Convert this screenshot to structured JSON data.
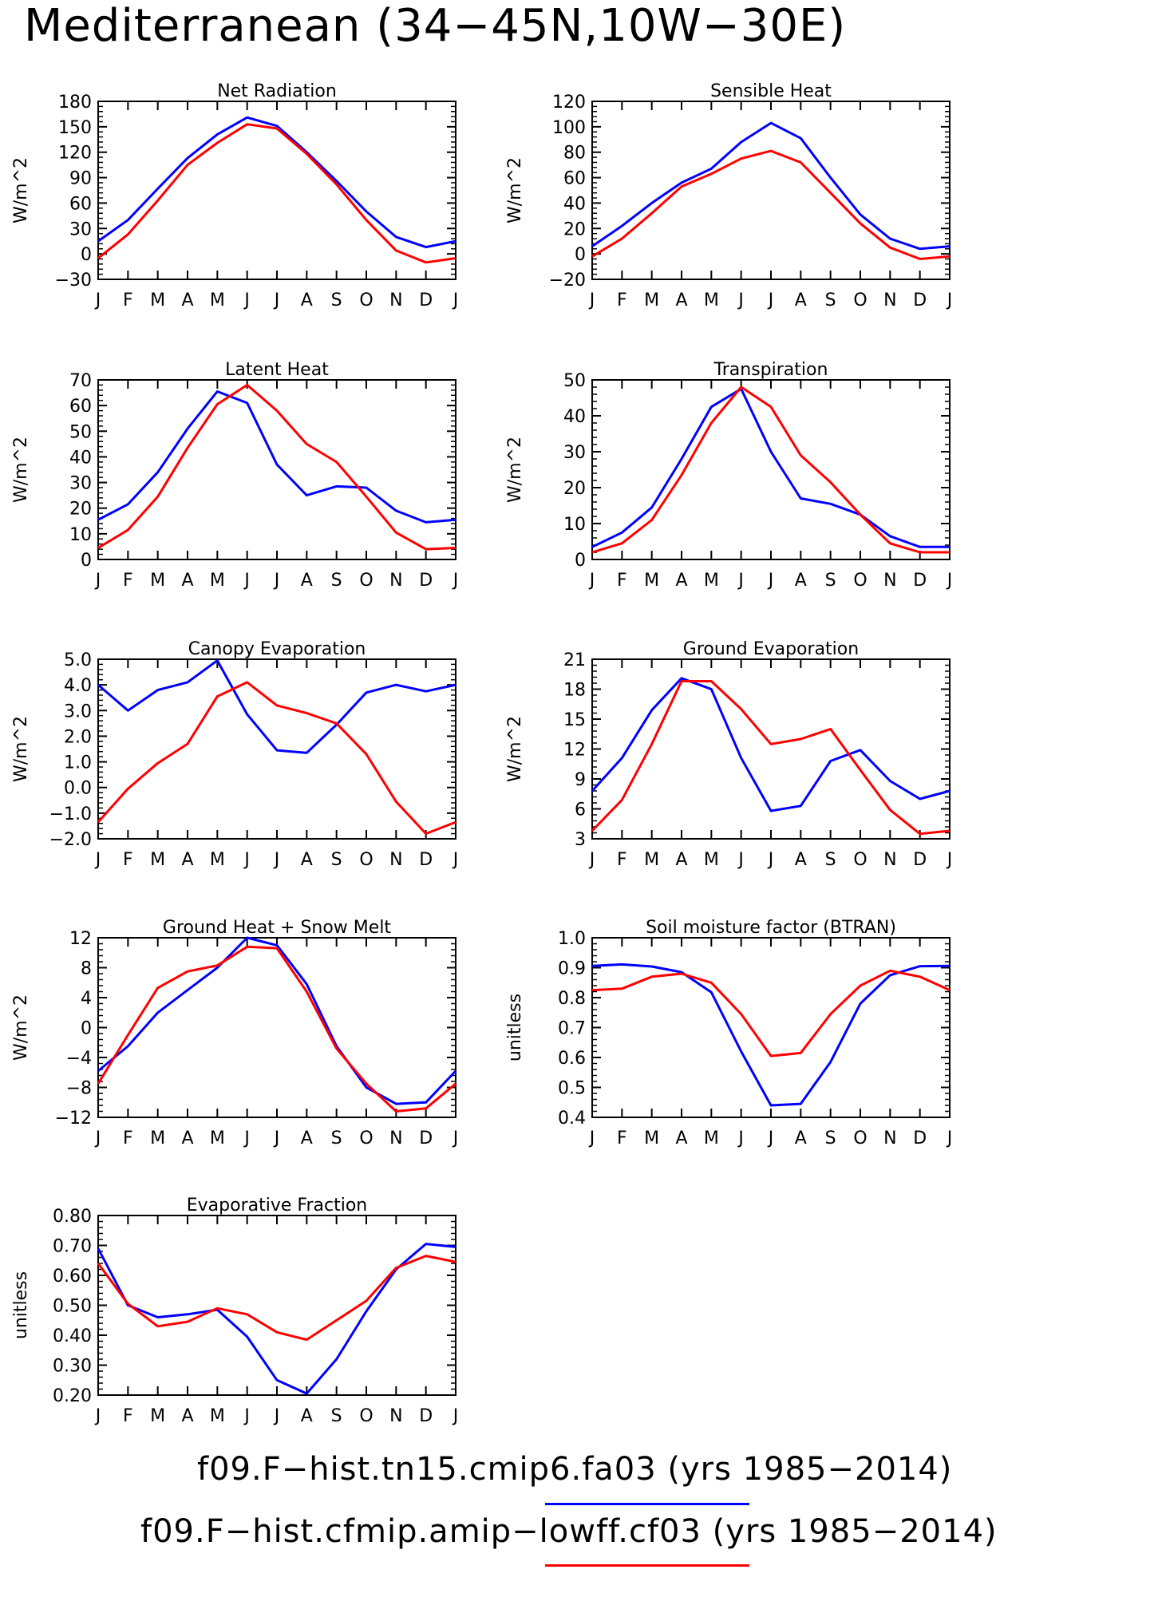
{
  "title": "Mediterranean (34−45N,10W−30E)",
  "months": [
    "J",
    "F",
    "M",
    "A",
    "M",
    "J",
    "J",
    "A",
    "S",
    "O",
    "N",
    "D",
    "J"
  ],
  "colors": {
    "blue": "#0000ff",
    "red": "#ff0000"
  },
  "legend": [
    {
      "label": "f09.F−hist.tn15.cmip6.fa03 (yrs 1985−2014)",
      "color": "#0000ff"
    },
    {
      "label": "f09.F−hist.cfmip.amip−lowff.cf03 (yrs 1985−2014)",
      "color": "#ff0000"
    }
  ],
  "chart_data": [
    {
      "type": "line",
      "title": "Net Radiation",
      "ylabel": "W/m^2",
      "ylim": [
        -30,
        180
      ],
      "yticks": [
        "180",
        "150",
        "120",
        "90",
        "60",
        "30",
        "0",
        "−30"
      ],
      "series": [
        {
          "color": "blue",
          "values": [
            15,
            40,
            77,
            113,
            141,
            161,
            151,
            120,
            86,
            50,
            20,
            8,
            15
          ]
        },
        {
          "color": "red",
          "values": [
            -5,
            23,
            63,
            105,
            131,
            153,
            148,
            118,
            82,
            40,
            4,
            -10,
            -5
          ]
        }
      ]
    },
    {
      "type": "line",
      "title": "Sensible Heat",
      "ylabel": "W/m^2",
      "ylim": [
        -20,
        120
      ],
      "yticks": [
        "120",
        "100",
        "80",
        "60",
        "40",
        "20",
        "0",
        "−20"
      ],
      "series": [
        {
          "color": "blue",
          "values": [
            6,
            22,
            40,
            56,
            67,
            88,
            103,
            91,
            60,
            31,
            12,
            4,
            6
          ]
        },
        {
          "color": "red",
          "values": [
            -2,
            12,
            32,
            53,
            63,
            75,
            81,
            72,
            48,
            24,
            5,
            -4,
            -2
          ]
        }
      ]
    },
    {
      "type": "line",
      "title": "Latent Heat",
      "ylabel": "W/m^2",
      "ylim": [
        0,
        70
      ],
      "yticks": [
        "70",
        "60",
        "50",
        "40",
        "30",
        "20",
        "10",
        "0"
      ],
      "series": [
        {
          "color": "blue",
          "values": [
            15.5,
            21.5,
            34,
            51,
            65.5,
            61,
            37,
            25,
            28.5,
            28,
            19,
            14.5,
            15.5
          ]
        },
        {
          "color": "red",
          "values": [
            4.5,
            11.5,
            24.5,
            43.5,
            60.5,
            68,
            58,
            45,
            38,
            24.5,
            10.5,
            4,
            4.5
          ]
        }
      ]
    },
    {
      "type": "line",
      "title": "Transpiration",
      "ylabel": "W/m^2",
      "ylim": [
        0,
        50
      ],
      "yticks": [
        "50",
        "40",
        "30",
        "20",
        "10",
        "0"
      ],
      "series": [
        {
          "color": "blue",
          "values": [
            3.5,
            7.5,
            14.5,
            28,
            42.5,
            47.5,
            30,
            17,
            15.5,
            12.5,
            6.5,
            3.5,
            3.5
          ]
        },
        {
          "color": "red",
          "values": [
            2,
            4.5,
            11,
            23.5,
            38,
            48,
            42.5,
            29,
            21.5,
            12.5,
            4.5,
            2,
            2
          ]
        }
      ]
    },
    {
      "type": "line",
      "title": "Canopy Evaporation",
      "ylabel": "W/m^2",
      "ylim": [
        -2.0,
        5.0
      ],
      "yticks": [
        "5.0",
        "4.0",
        "3.0",
        "2.0",
        "1.0",
        "0.0",
        "−1.0",
        "−2.0"
      ],
      "series": [
        {
          "color": "blue",
          "values": [
            4.0,
            3.0,
            3.8,
            4.1,
            4.95,
            2.85,
            1.45,
            1.35,
            2.45,
            3.7,
            4.0,
            3.75,
            4.0
          ]
        },
        {
          "color": "red",
          "values": [
            -1.35,
            -0.05,
            0.95,
            1.7,
            3.55,
            4.1,
            3.2,
            2.9,
            2.5,
            1.3,
            -0.55,
            -1.8,
            -1.35
          ]
        }
      ]
    },
    {
      "type": "line",
      "title": "Ground Evaporation",
      "ylabel": "W/m^2",
      "ylim": [
        3,
        21
      ],
      "yticks": [
        "21",
        "18",
        "15",
        "12",
        "9",
        "6",
        "3"
      ],
      "series": [
        {
          "color": "blue",
          "values": [
            7.8,
            11.1,
            15.9,
            19.1,
            18,
            11.1,
            5.8,
            6.3,
            10.8,
            11.9,
            8.8,
            7.0,
            7.8
          ]
        },
        {
          "color": "red",
          "values": [
            3.8,
            6.9,
            12.5,
            18.8,
            18.8,
            16,
            12.5,
            13,
            14,
            9.9,
            5.9,
            3.5,
            3.8
          ]
        }
      ]
    },
    {
      "type": "line",
      "title": "Ground Heat + Snow Melt",
      "ylabel": "W/m^2",
      "ylim": [
        -12,
        12
      ],
      "yticks": [
        "12",
        "8",
        "4",
        "0",
        "−4",
        "−8",
        "−12"
      ],
      "series": [
        {
          "color": "blue",
          "values": [
            -5.8,
            -2.5,
            2,
            5,
            8,
            12,
            11,
            5.8,
            -2.5,
            -8,
            -10.2,
            -10,
            -5.8
          ]
        },
        {
          "color": "red",
          "values": [
            -7.5,
            -1,
            5.3,
            7.5,
            8.3,
            10.8,
            10.6,
            4.8,
            -2.8,
            -7.5,
            -11.2,
            -10.8,
            -7.5
          ]
        }
      ]
    },
    {
      "type": "line",
      "title": "Soil moisture factor (BTRAN)",
      "ylabel": "unitless",
      "ylim": [
        0.4,
        1.0
      ],
      "yticks": [
        "1.0",
        "0.9",
        "0.8",
        "0.7",
        "0.6",
        "0.5",
        "0.4"
      ],
      "series": [
        {
          "color": "blue",
          "values": [
            0.906,
            0.911,
            0.904,
            0.885,
            0.818,
            0.62,
            0.44,
            0.445,
            0.585,
            0.78,
            0.875,
            0.905,
            0.906
          ]
        },
        {
          "color": "red",
          "values": [
            0.825,
            0.83,
            0.87,
            0.88,
            0.85,
            0.745,
            0.605,
            0.615,
            0.745,
            0.84,
            0.89,
            0.87,
            0.825
          ]
        }
      ]
    },
    {
      "type": "line",
      "title": "Evaporative Fraction",
      "ylabel": "unitless",
      "ylim": [
        0.2,
        0.8
      ],
      "yticks": [
        "0.80",
        "0.70",
        "0.60",
        "0.50",
        "0.40",
        "0.30",
        "0.20"
      ],
      "series": [
        {
          "color": "blue",
          "values": [
            0.69,
            0.5,
            0.46,
            0.47,
            0.485,
            0.395,
            0.25,
            0.205,
            0.32,
            0.48,
            0.62,
            0.705,
            0.695
          ]
        },
        {
          "color": "red",
          "values": [
            0.64,
            0.505,
            0.43,
            0.445,
            0.49,
            0.47,
            0.41,
            0.385,
            0.45,
            0.515,
            0.625,
            0.665,
            0.645
          ]
        }
      ]
    }
  ]
}
